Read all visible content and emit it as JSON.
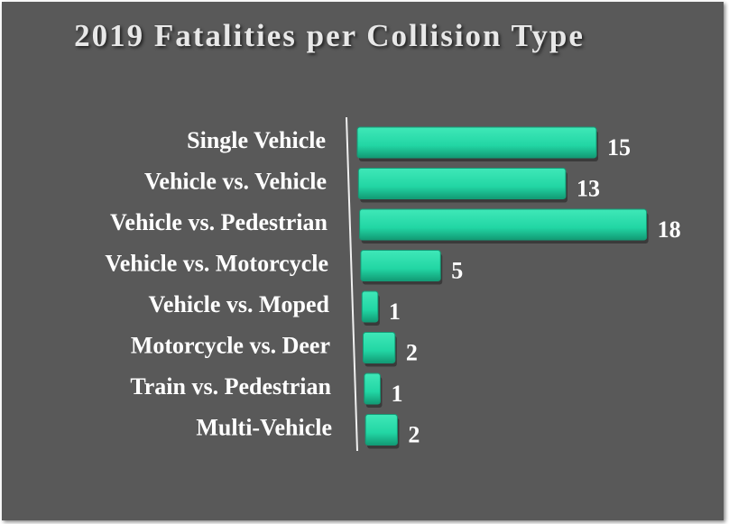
{
  "chart_data": {
    "type": "bar",
    "orientation": "horizontal",
    "title": "2019 Fatalities per Collision Type",
    "categories": [
      "Single Vehicle",
      "Vehicle vs. Vehicle",
      "Vehicle vs. Pedestrian",
      "Vehicle vs. Motorcycle",
      "Vehicle vs. Moped",
      "Motorcycle vs. Deer",
      "Train vs. Pedestrian",
      "Multi-Vehicle"
    ],
    "values": [
      15,
      13,
      18,
      5,
      1,
      2,
      1,
      2
    ],
    "color": "#22d6a4"
  }
}
